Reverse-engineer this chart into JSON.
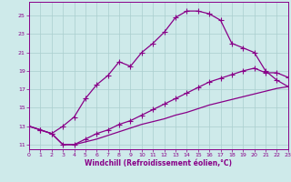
{
  "xlabel": "Windchill (Refroidissement éolien,°C)",
  "bg_color": "#ceeaea",
  "grid_color": "#aacece",
  "line_color": "#880088",
  "marker": "+",
  "xlim": [
    0,
    23
  ],
  "ylim": [
    10.5,
    26.5
  ],
  "xticks": [
    0,
    1,
    2,
    3,
    4,
    5,
    6,
    7,
    8,
    9,
    10,
    11,
    12,
    13,
    14,
    15,
    16,
    17,
    18,
    19,
    20,
    21,
    22,
    23
  ],
  "yticks": [
    11,
    13,
    15,
    17,
    19,
    21,
    23,
    25
  ],
  "curve1_x": [
    0,
    1,
    2,
    3,
    4,
    5,
    6,
    7,
    8,
    9,
    10,
    11,
    12,
    13,
    14,
    15,
    16,
    17,
    18,
    19,
    20,
    21,
    22,
    23
  ],
  "curve1_y": [
    13.0,
    12.6,
    12.2,
    13.0,
    14.0,
    16.0,
    17.5,
    18.5,
    20.0,
    19.5,
    21.0,
    22.0,
    23.2,
    24.8,
    25.5,
    25.5,
    25.2,
    24.5,
    22.0,
    21.5,
    21.0,
    19.0,
    18.0,
    17.3
  ],
  "curve2_x": [
    0,
    1,
    2,
    3,
    4,
    5,
    6,
    7,
    8,
    9,
    10,
    11,
    12,
    13,
    14,
    15,
    16,
    17,
    18,
    19,
    20,
    21,
    22,
    23
  ],
  "curve2_y": [
    13.0,
    12.6,
    12.2,
    11.0,
    11.0,
    11.6,
    12.2,
    12.6,
    13.2,
    13.6,
    14.2,
    14.8,
    15.4,
    16.0,
    16.6,
    17.2,
    17.8,
    18.2,
    18.6,
    19.0,
    19.3,
    18.8,
    18.8,
    18.3
  ],
  "curve3_x": [
    0,
    1,
    2,
    3,
    4,
    5,
    6,
    7,
    8,
    9,
    10,
    11,
    12,
    13,
    14,
    15,
    16,
    17,
    18,
    19,
    20,
    21,
    22,
    23
  ],
  "curve3_y": [
    13.0,
    12.6,
    12.2,
    11.0,
    11.0,
    11.3,
    11.6,
    12.0,
    12.4,
    12.8,
    13.2,
    13.5,
    13.8,
    14.2,
    14.5,
    14.9,
    15.3,
    15.6,
    15.9,
    16.2,
    16.5,
    16.8,
    17.1,
    17.3
  ]
}
